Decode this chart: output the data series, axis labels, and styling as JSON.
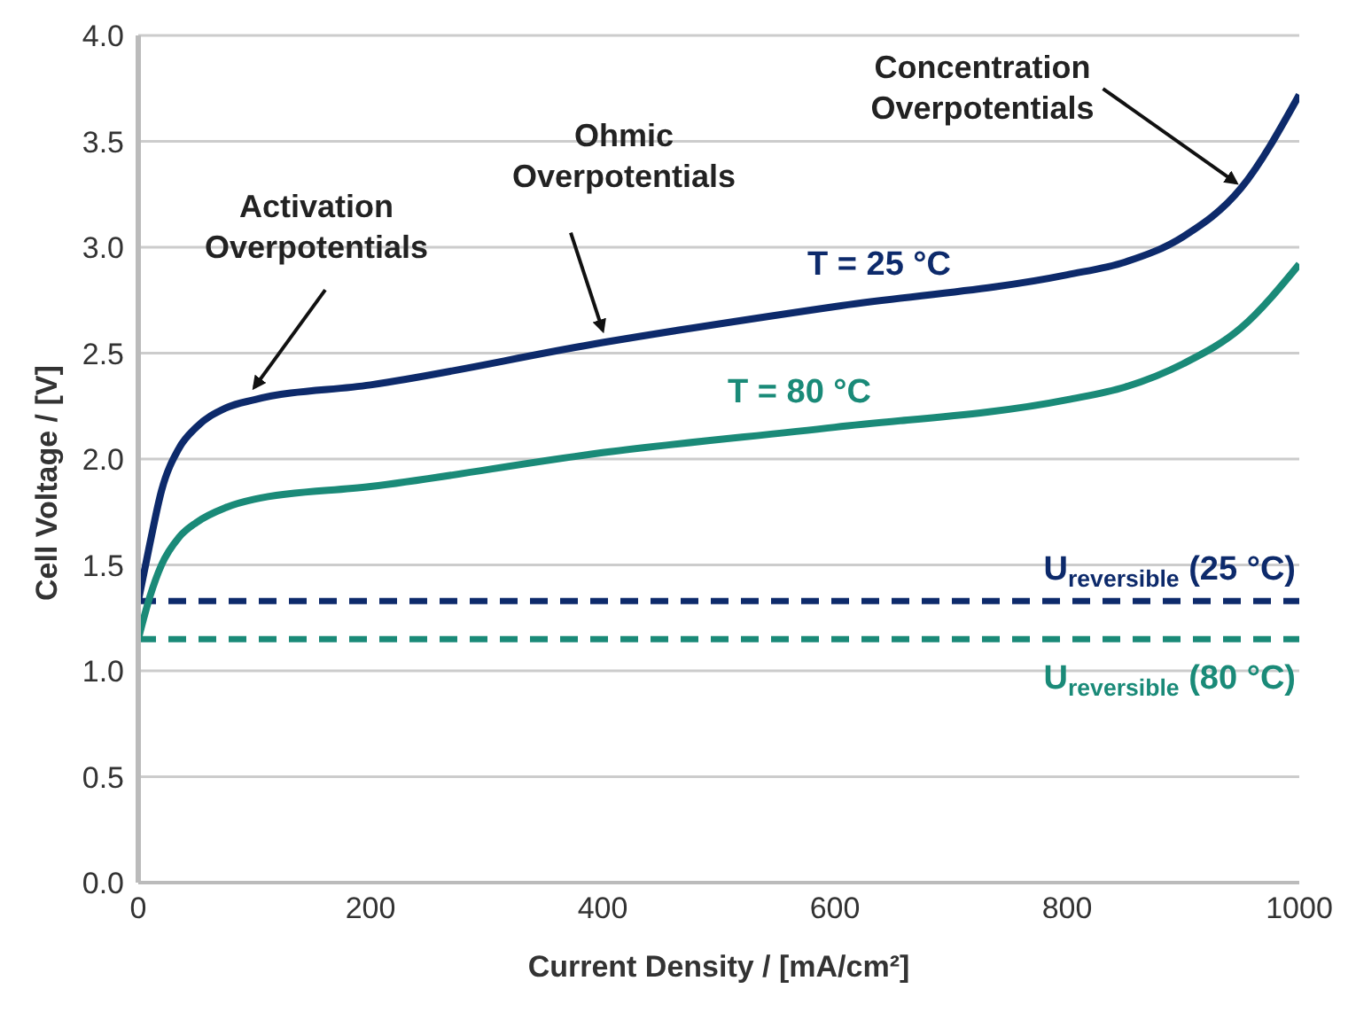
{
  "chart_data": {
    "type": "line",
    "xlabel": "Current Density / [mA/cm²]",
    "ylabel": "Cell Voltage / [V]",
    "x": [
      0,
      10,
      20,
      35,
      50,
      75,
      100,
      200,
      400,
      600,
      800,
      850,
      900,
      950,
      1000
    ],
    "series": [
      {
        "name": "T = 25 °C",
        "color": "#0d2a6b",
        "values": [
          1.33,
          1.6,
          1.85,
          2.05,
          2.15,
          2.24,
          2.28,
          2.35,
          2.55,
          2.72,
          2.87,
          2.93,
          3.05,
          3.28,
          3.72
        ]
      },
      {
        "name": "T = 80 °C",
        "color": "#1a8a78",
        "values": [
          1.15,
          1.35,
          1.5,
          1.63,
          1.7,
          1.77,
          1.81,
          1.87,
          2.03,
          2.15,
          2.28,
          2.34,
          2.45,
          2.62,
          2.92
        ]
      }
    ],
    "xlim": [
      0,
      1000
    ],
    "xticks": [
      0,
      200,
      400,
      600,
      800,
      1000
    ],
    "ylim": [
      0,
      4
    ],
    "yticks": [
      {
        "value": 0,
        "label": "0.0"
      },
      {
        "value": 0.5,
        "label": "0.5"
      },
      {
        "value": 1,
        "label": "1.0"
      },
      {
        "value": 1.5,
        "label": "1.5"
      },
      {
        "value": 2,
        "label": "2.0"
      },
      {
        "value": 2.5,
        "label": "2.5"
      },
      {
        "value": 3,
        "label": "3.0"
      },
      {
        "value": 3.5,
        "label": "3.5"
      },
      {
        "value": 4,
        "label": "4.0"
      }
    ],
    "grid": "y",
    "legend": false,
    "marker": "none",
    "line_style": "solid",
    "ref_lines": [
      {
        "axis": "y",
        "value": 1.33,
        "label": "U$_{reversible}$ (25 °C)",
        "color": "#0d2a6b",
        "line_style": "dashed"
      },
      {
        "axis": "y",
        "value": 1.15,
        "label": "U$_{reversible}$ (80 °C)",
        "color": "#1a8a78",
        "line_style": "dashed"
      }
    ],
    "annotations": [
      {
        "text": "Activation\nOverpotentials",
        "x": 100,
        "y": 2.28
      },
      {
        "text": "Ohmic\nOverpotentials",
        "x": 400,
        "y": 2.55
      },
      {
        "text": "Concentration\nOverpotentials",
        "x": 950,
        "y": 3.28
      }
    ]
  }
}
